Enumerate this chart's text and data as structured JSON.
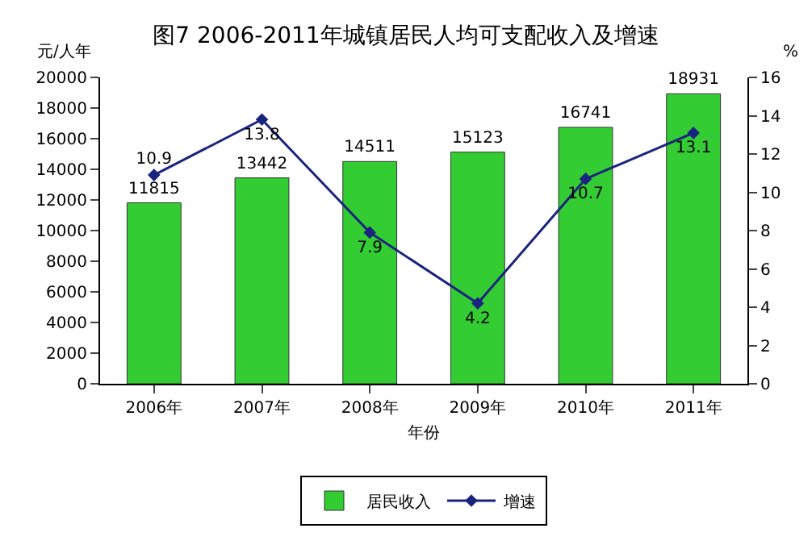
{
  "chart_data": {
    "type": "bar",
    "title": "图7 2006-2011年城镇居民人均可支配收入及增速",
    "xlabel": "年份",
    "ylabel": "元/人年",
    "y2label": "%",
    "categories": [
      "2006年",
      "2007年",
      "2008年",
      "2009年",
      "2010年",
      "2011年"
    ],
    "series": [
      {
        "name": "居民收入",
        "color": "#33cc33",
        "values": [
          11815,
          13442,
          14511,
          15123,
          16741,
          18931
        ]
      },
      {
        "name": "增速",
        "type": "line",
        "axis": "y2",
        "color": "#1a237e",
        "marker": "diamond",
        "values": [
          10.9,
          13.8,
          7.9,
          4.2,
          10.7,
          13.1
        ]
      }
    ],
    "ylim": [
      0,
      20000
    ],
    "yticks": [
      0,
      2000,
      4000,
      6000,
      8000,
      10000,
      12000,
      14000,
      16000,
      18000,
      20000
    ],
    "y2lim": [
      0,
      16
    ],
    "y2ticks": [
      0,
      2,
      4,
      6,
      8,
      10,
      12,
      14,
      16
    ],
    "data_labels": true,
    "grid": false,
    "legend": "bottom"
  }
}
